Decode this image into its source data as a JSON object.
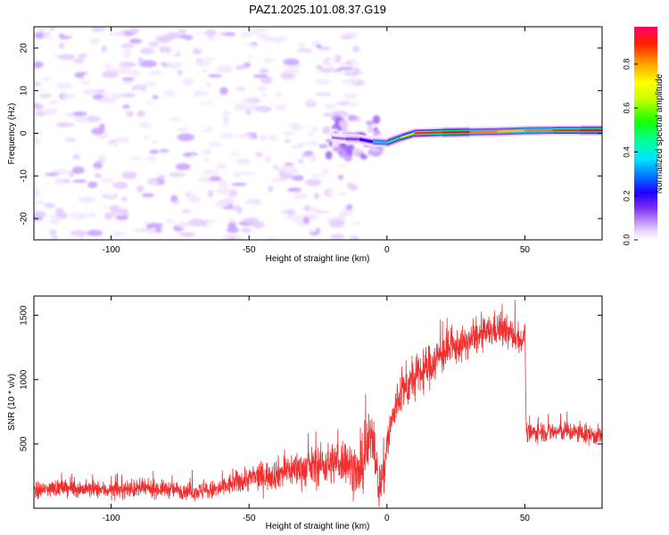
{
  "title": "PAZ1.2025.101.08.37.G19",
  "colorbar": {
    "label": "Normalized spectral amplitude",
    "ticks": [
      "0.0",
      "0.2",
      "0.4",
      "0.6",
      "0.8"
    ],
    "tick_values": [
      0.0,
      0.2,
      0.4,
      0.6,
      0.8
    ],
    "range": [
      0,
      0.97
    ],
    "colors": [
      "#ffffff",
      "#f3e6ff",
      "#e5ccff",
      "#c9a0ff",
      "#a467f5",
      "#8b3ff0",
      "#6a1fe6",
      "#2200ff",
      "#0066ff",
      "#00ccff",
      "#00ffd0",
      "#00ff66",
      "#33ff00",
      "#b2ff00",
      "#ffff00",
      "#ffc200",
      "#ff8000",
      "#ff3300",
      "#ff0040",
      "#ff0066"
    ]
  },
  "chart_data": [
    {
      "type": "heatmap",
      "xlabel": "Height of straight line (km)",
      "ylabel": "Frequency (Hz)",
      "xlim": [
        -128,
        78
      ],
      "ylim": [
        -25,
        25
      ],
      "xticks": [
        -100,
        -50,
        0,
        50
      ],
      "xtick_labels": [
        "-100",
        "-50",
        "0",
        "50"
      ],
      "yticks": [
        -20,
        -10,
        0,
        10,
        20
      ],
      "ytick_labels": [
        "-20",
        "-10",
        "0",
        "10",
        "20"
      ],
      "noise_region_x": [
        -128,
        -10
      ],
      "ridge": {
        "x": [
          -20,
          -15,
          -10,
          -5,
          0,
          5,
          10,
          20,
          30,
          40,
          50,
          60,
          70,
          78
        ],
        "y": [
          -1.0,
          -1.3,
          -1.4,
          -2.0,
          -2.2,
          -1.0,
          0.0,
          0.2,
          0.3,
          0.4,
          0.6,
          0.7,
          0.7,
          0.7
        ],
        "amplitude": [
          0.15,
          0.25,
          0.3,
          0.4,
          0.5,
          0.6,
          0.75,
          0.95,
          0.9,
          0.7,
          0.8,
          0.8,
          0.9,
          0.95
        ]
      }
    },
    {
      "type": "line",
      "xlabel": "Height of straight line (km)",
      "ylabel": "SNR (10 * v/v)",
      "xlim": [
        -128,
        78
      ],
      "ylim": [
        0,
        1650
      ],
      "xticks": [
        -100,
        -50,
        0,
        50
      ],
      "xtick_labels": [
        "-100",
        "-50",
        "0",
        "50"
      ],
      "yticks": [
        500,
        1000,
        1500
      ],
      "ytick_labels": [
        "500",
        "1000",
        "1500"
      ],
      "color": "#f03030",
      "x": [
        -128,
        -120,
        -110,
        -100,
        -90,
        -80,
        -70,
        -62,
        -55,
        -50,
        -45,
        -40,
        -35,
        -30,
        -25,
        -20,
        -15,
        -12,
        -10,
        -8,
        -5,
        -3,
        -1,
        0,
        2,
        5,
        10,
        15,
        20,
        25,
        30,
        35,
        40,
        45,
        49.5,
        50,
        50.5,
        55,
        60,
        65,
        70,
        78
      ],
      "y": [
        130,
        160,
        150,
        140,
        150,
        150,
        130,
        140,
        200,
        230,
        250,
        270,
        300,
        310,
        330,
        350,
        380,
        300,
        250,
        400,
        600,
        150,
        300,
        500,
        700,
        900,
        1000,
        1100,
        1200,
        1250,
        1300,
        1350,
        1400,
        1350,
        1300,
        1450,
        570,
        600,
        590,
        600,
        580,
        560
      ],
      "noise_amp": [
        60,
        60,
        60,
        60,
        60,
        60,
        60,
        70,
        80,
        90,
        100,
        110,
        120,
        130,
        140,
        150,
        160,
        170,
        180,
        200,
        200,
        150,
        200,
        150,
        150,
        150,
        150,
        150,
        140,
        120,
        110,
        110,
        120,
        110,
        80,
        0,
        70,
        70,
        70,
        70,
        70,
        70
      ]
    }
  ]
}
